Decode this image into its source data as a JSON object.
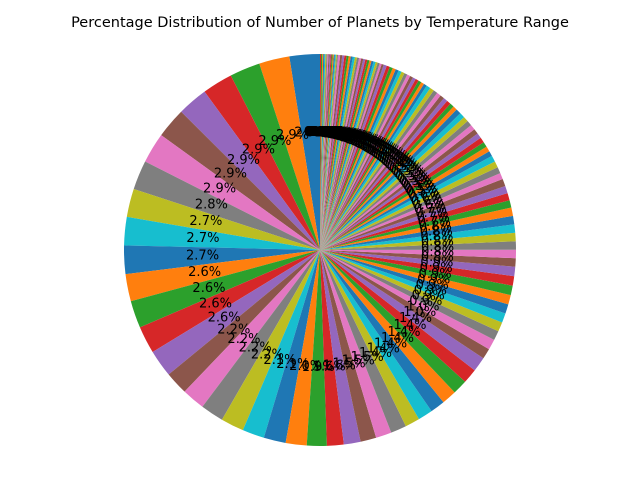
{
  "chart_data": {
    "type": "pie",
    "title": "Percentage Distribution of Number of Planets by Temperature Range",
    "start_angle_deg": 90,
    "direction": "counterclockwise",
    "label_format": "{pct:.1f}%",
    "colors": [
      "#1f77b4",
      "#ff7f0e",
      "#2ca02c",
      "#d62728",
      "#9467bd",
      "#8c564b",
      "#e377c2",
      "#7f7f7f",
      "#bcbd22",
      "#17becf"
    ],
    "values": [
      2.9,
      2.9,
      2.9,
      2.9,
      2.9,
      2.9,
      2.9,
      2.8,
      2.7,
      2.7,
      2.7,
      2.6,
      2.6,
      2.6,
      2.6,
      2.2,
      2.2,
      2.2,
      2.2,
      2.1,
      2.1,
      2.0,
      1.9,
      1.6,
      1.6,
      1.5,
      1.5,
      1.5,
      1.4,
      1.4,
      1.4,
      1.4,
      1.4,
      1.4,
      1.4,
      1.0,
      1.0,
      0.9,
      0.9,
      0.9,
      0.9,
      0.9,
      0.9,
      0.9,
      0.9,
      0.8,
      0.8,
      0.8,
      0.8,
      0.8,
      0.8,
      0.8,
      0.7,
      0.7,
      0.7,
      0.7,
      0.6,
      0.6,
      0.6,
      0.6,
      0.5,
      0.5,
      0.5,
      0.5,
      0.5,
      0.5,
      0.5,
      0.5,
      0.5,
      0.5,
      0.5,
      0.4,
      0.4,
      0.4,
      0.4,
      0.4,
      0.4,
      0.4,
      0.4,
      0.4,
      0.3,
      0.3,
      0.3,
      0.3,
      0.3,
      0.3,
      0.3,
      0.3,
      0.3,
      0.3,
      0.3,
      0.3,
      0.3,
      0.3,
      0.3,
      0.2,
      0.2,
      0.2,
      0.2,
      0.2,
      0.2,
      0.2,
      0.2,
      0.2,
      0.2,
      0.2,
      0.2,
      0.2,
      0.2,
      0.2,
      0.2,
      0.2,
      0.2,
      0.2,
      0.2,
      0.2,
      0.2,
      0.1,
      0.1,
      0.1,
      0.1,
      0.1,
      0.1,
      0.1,
      0.1,
      0.1,
      0.1,
      0.1,
      0.1,
      0.1,
      0.1,
      0.1,
      0.1,
      0.1
    ]
  }
}
